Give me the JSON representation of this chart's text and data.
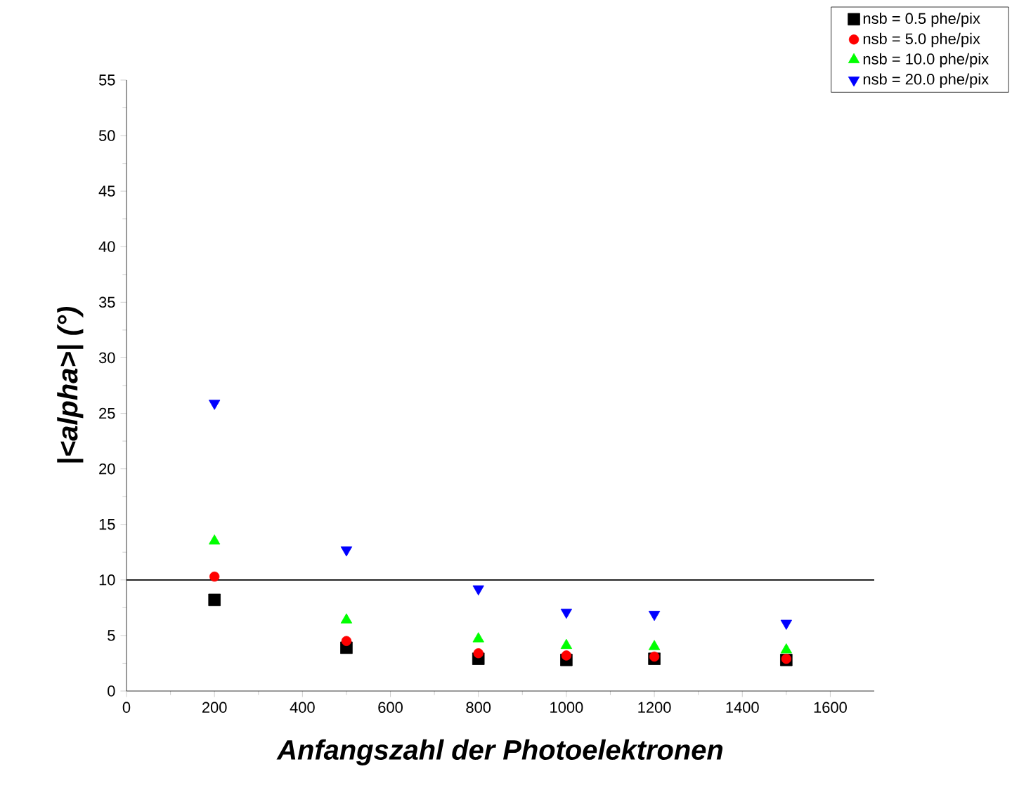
{
  "chart_data": {
    "type": "scatter",
    "xlabel": "Anfangszahl der Photoelektronen",
    "ylabel": "|<alpha>| (°)",
    "x": [
      200,
      500,
      800,
      1000,
      1200,
      1500
    ],
    "series": [
      {
        "name": "nsb = 0.5 phe/pix",
        "color": "#000000",
        "marker": "square",
        "values": [
          8.2,
          3.9,
          2.9,
          2.8,
          2.9,
          2.8
        ]
      },
      {
        "name": "nsb = 5.0 phe/pix",
        "color": "#ff0000",
        "marker": "circle",
        "values": [
          10.3,
          4.5,
          3.4,
          3.2,
          3.1,
          2.9
        ]
      },
      {
        "name": "nsb = 10.0 phe/pix",
        "color": "#00ff00",
        "marker": "triangle",
        "values": [
          13.5,
          6.4,
          4.7,
          4.1,
          4.0,
          3.7
        ]
      },
      {
        "name": "nsb = 20.0 phe/pix",
        "color": "#0000ff",
        "marker": "triangle-down",
        "values": [
          25.9,
          12.7,
          9.2,
          7.1,
          6.9,
          6.1
        ]
      }
    ],
    "xlim": [
      0,
      1700
    ],
    "ylim": [
      0,
      55
    ],
    "xticks": [
      0,
      200,
      400,
      600,
      800,
      1000,
      1200,
      1400,
      1600
    ],
    "yticks": [
      0,
      5,
      10,
      15,
      20,
      25,
      30,
      35,
      40,
      45,
      50,
      55
    ],
    "ref_lines": [
      {
        "axis": "y",
        "value": 10,
        "color": "#000000",
        "line_style": "solid"
      }
    ],
    "grid": false,
    "legend": "top right"
  }
}
